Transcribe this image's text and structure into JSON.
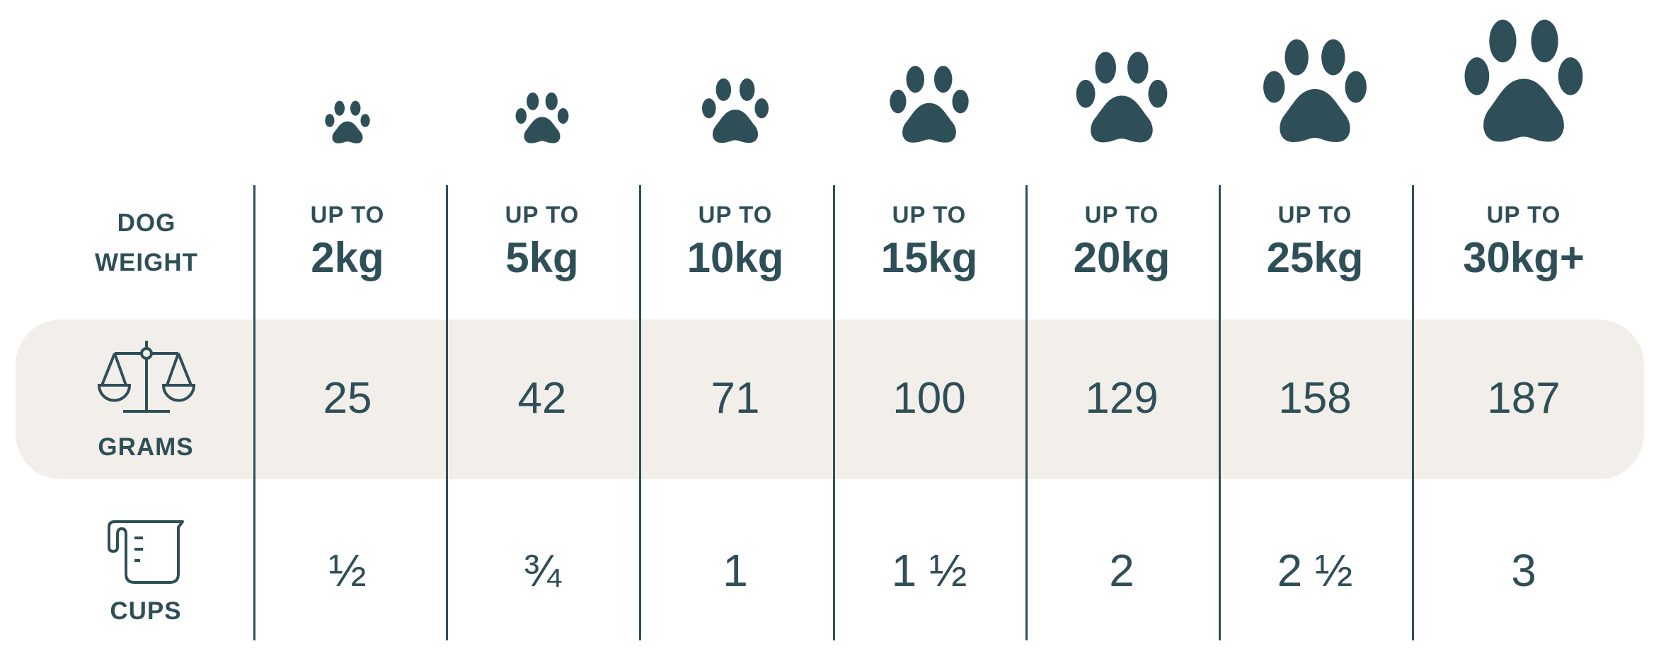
{
  "colors": {
    "primary": "#2f4f58",
    "band": "#f2efea"
  },
  "labels": {
    "dog_weight_line1": "DOG",
    "dog_weight_line2": "WEIGHT",
    "grams": "GRAMS",
    "cups": "CUPS",
    "grams_icon": "scale-icon",
    "cups_icon": "measuring-cup-icon"
  },
  "columns": [
    {
      "up_to": "UP TO",
      "weight": "2kg",
      "grams": "25",
      "cups": "½"
    },
    {
      "up_to": "UP TO",
      "weight": "5kg",
      "grams": "42",
      "cups": "¾"
    },
    {
      "up_to": "UP TO",
      "weight": "10kg",
      "grams": "71",
      "cups": "1"
    },
    {
      "up_to": "UP TO",
      "weight": "15kg",
      "grams": "100",
      "cups": "1 ½"
    },
    {
      "up_to": "UP TO",
      "weight": "20kg",
      "grams": "129",
      "cups": "2"
    },
    {
      "up_to": "UP TO",
      "weight": "25kg",
      "grams": "158",
      "cups": "2 ½"
    },
    {
      "up_to": "UP TO",
      "weight": "30kg+",
      "grams": "187",
      "cups": "3"
    }
  ]
}
